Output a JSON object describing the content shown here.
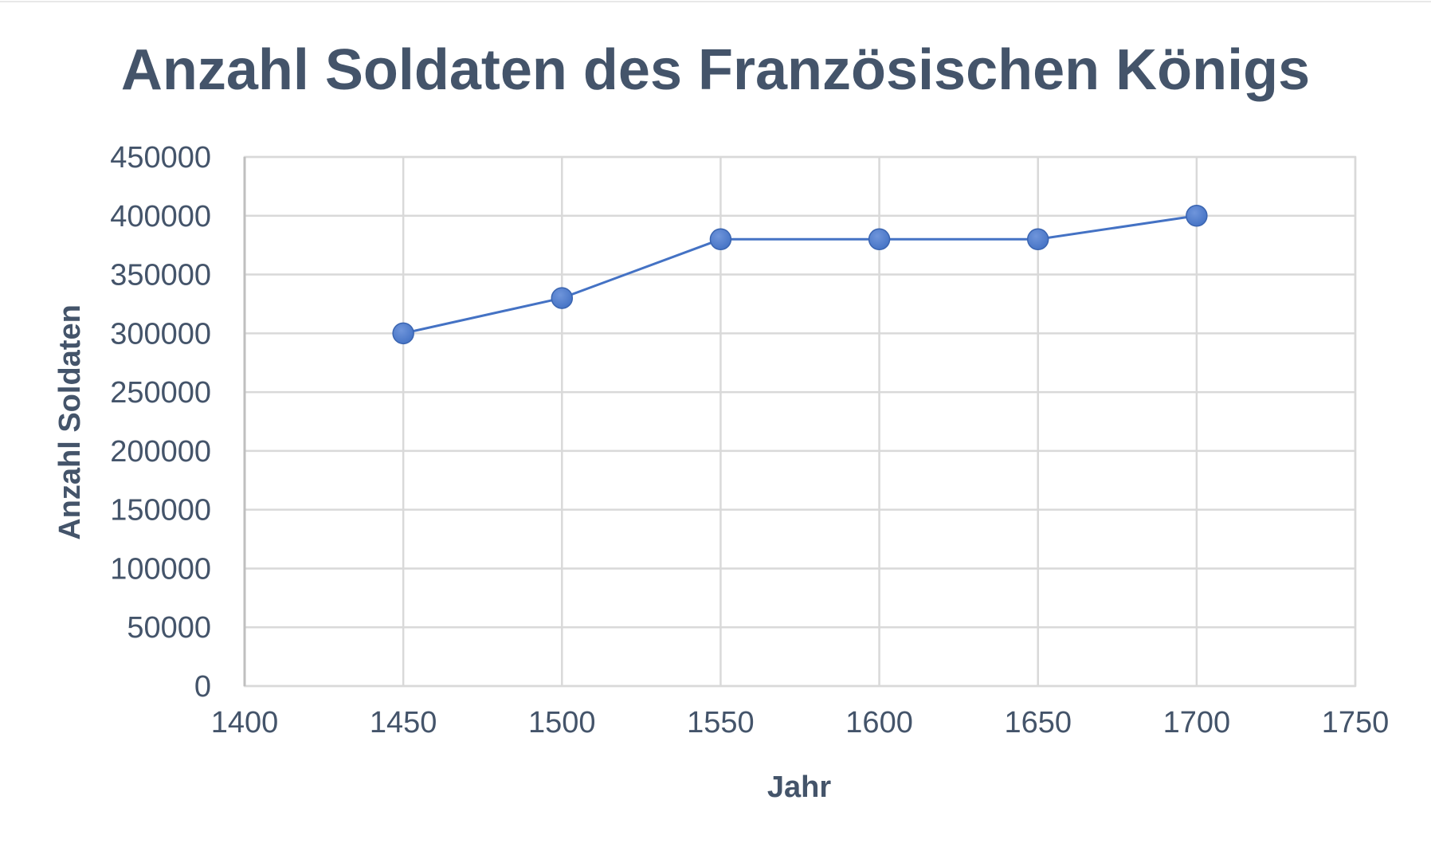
{
  "chart_data": {
    "type": "scatter",
    "title": "Anzahl Soldaten des Französischen Königs",
    "xlabel": "Jahr",
    "ylabel": "Anzahl Soldaten",
    "xlim": [
      1400,
      1750
    ],
    "ylim": [
      0,
      450000
    ],
    "xticks": [
      1400,
      1450,
      1500,
      1550,
      1600,
      1650,
      1700,
      1750
    ],
    "yticks": [
      0,
      50000,
      100000,
      150000,
      200000,
      250000,
      300000,
      350000,
      400000,
      450000
    ],
    "grid": true,
    "legend": "none",
    "series": [
      {
        "color": "#4472c4",
        "marker_color": "#4472c4",
        "x": [
          1450,
          1500,
          1550,
          1600,
          1650,
          1700
        ],
        "y": [
          300000,
          330000,
          380000,
          380000,
          380000,
          400000
        ]
      }
    ]
  }
}
